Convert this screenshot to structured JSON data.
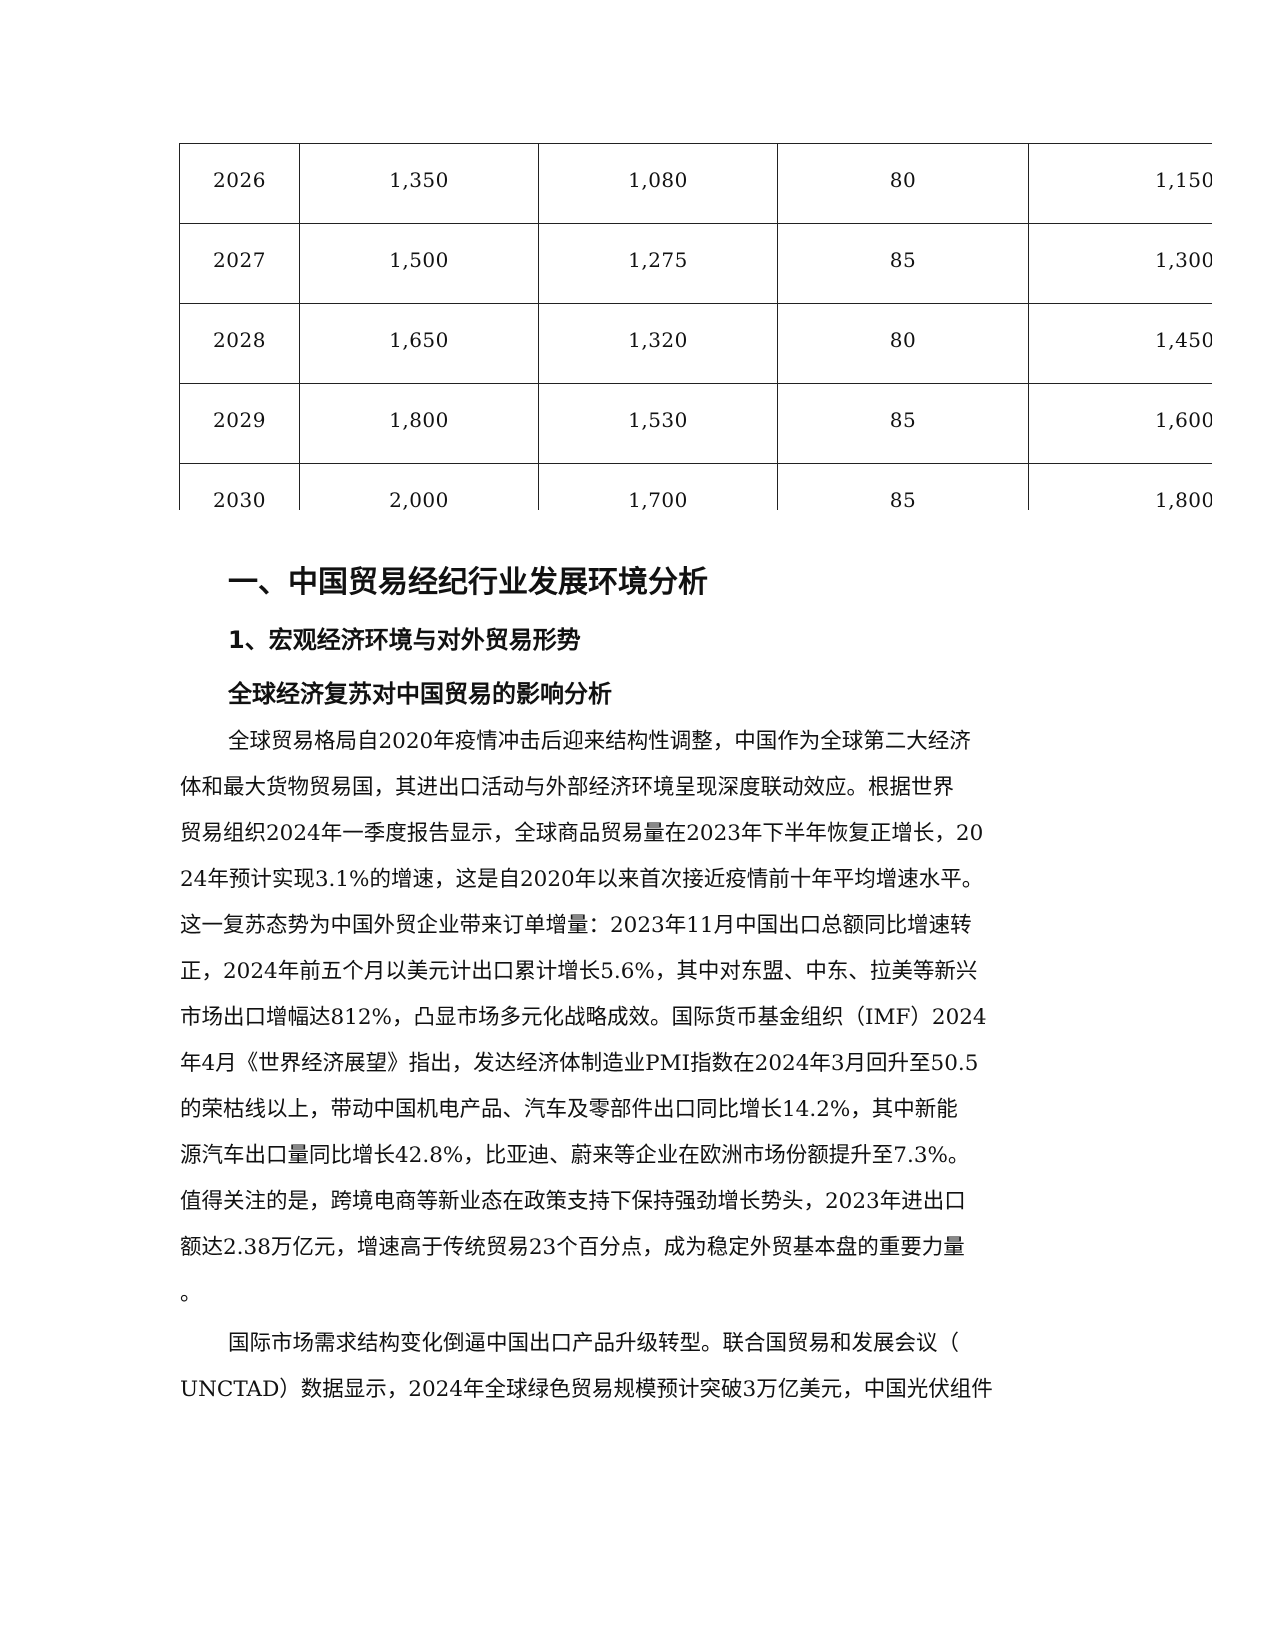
{
  "table": {
    "rows": [
      [
        "2026",
        "1,350",
        "1,080",
        "80",
        "1,150"
      ],
      [
        "2027",
        "1,500",
        "1,275",
        "85",
        "1,300"
      ],
      [
        "2028",
        "1,650",
        "1,320",
        "80",
        "1,450"
      ],
      [
        "2029",
        "1,800",
        "1,530",
        "85",
        "1,600"
      ],
      [
        "2030",
        "2,000",
        "1,700",
        "85",
        "1,800"
      ]
    ]
  },
  "headings": {
    "h1": "一、中国贸易经纪行业发展环境分析",
    "h2": "1、宏观经济环境与对外贸易形势",
    "h3": "全球经济复苏对中国贸易的影响分析"
  },
  "paragraph_lines": [
    "全球贸易格局自2020年疫情冲击后迎来结构性调整，中国作为全球第二大经济",
    "体和最大货物贸易国，其进出口活动与外部经济环境呈现深度联动效应。根据世界",
    "贸易组织2024年一季度报告显示，全球商品贸易量在2023年下半年恢复正增长，20",
    "24年预计实现3.1%的增速，这是自2020年以来首次接近疫情前十年平均增速水平。",
    "这一复苏态势为中国外贸企业带来订单增量：2023年11月中国出口总额同比增速转",
    "正，2024年前五个月以美元计出口累计增长5.6%，其中对东盟、中东、拉美等新兴",
    "市场出口增幅达812%，凸显市场多元化战略成效。国际货币基金组织（IMF）2024",
    "年4月《世界经济展望》指出，发达经济体制造业PMI指数在2024年3月回升至50.5",
    "的荣枯线以上，带动中国机电产品、汽车及零部件出口同比增长14.2%，其中新能",
    "源汽车出口量同比增长42.8%，比亚迪、蔚来等企业在欧洲市场份额提升至7.3%。",
    "值得关注的是，跨境电商等新业态在政策支持下保持强劲增长势头，2023年进出口",
    "额达2.38万亿元，增速高于传统贸易23个百分点，成为稳定外贸基本盘的重要力量",
    "。",
    "国际市场需求结构变化倒逼中国出口产品升级转型。联合国贸易和发展会议（",
    "UNCTAD）数据显示，2024年全球绿色贸易规模预计突破3万亿美元，中国光伏组件"
  ]
}
